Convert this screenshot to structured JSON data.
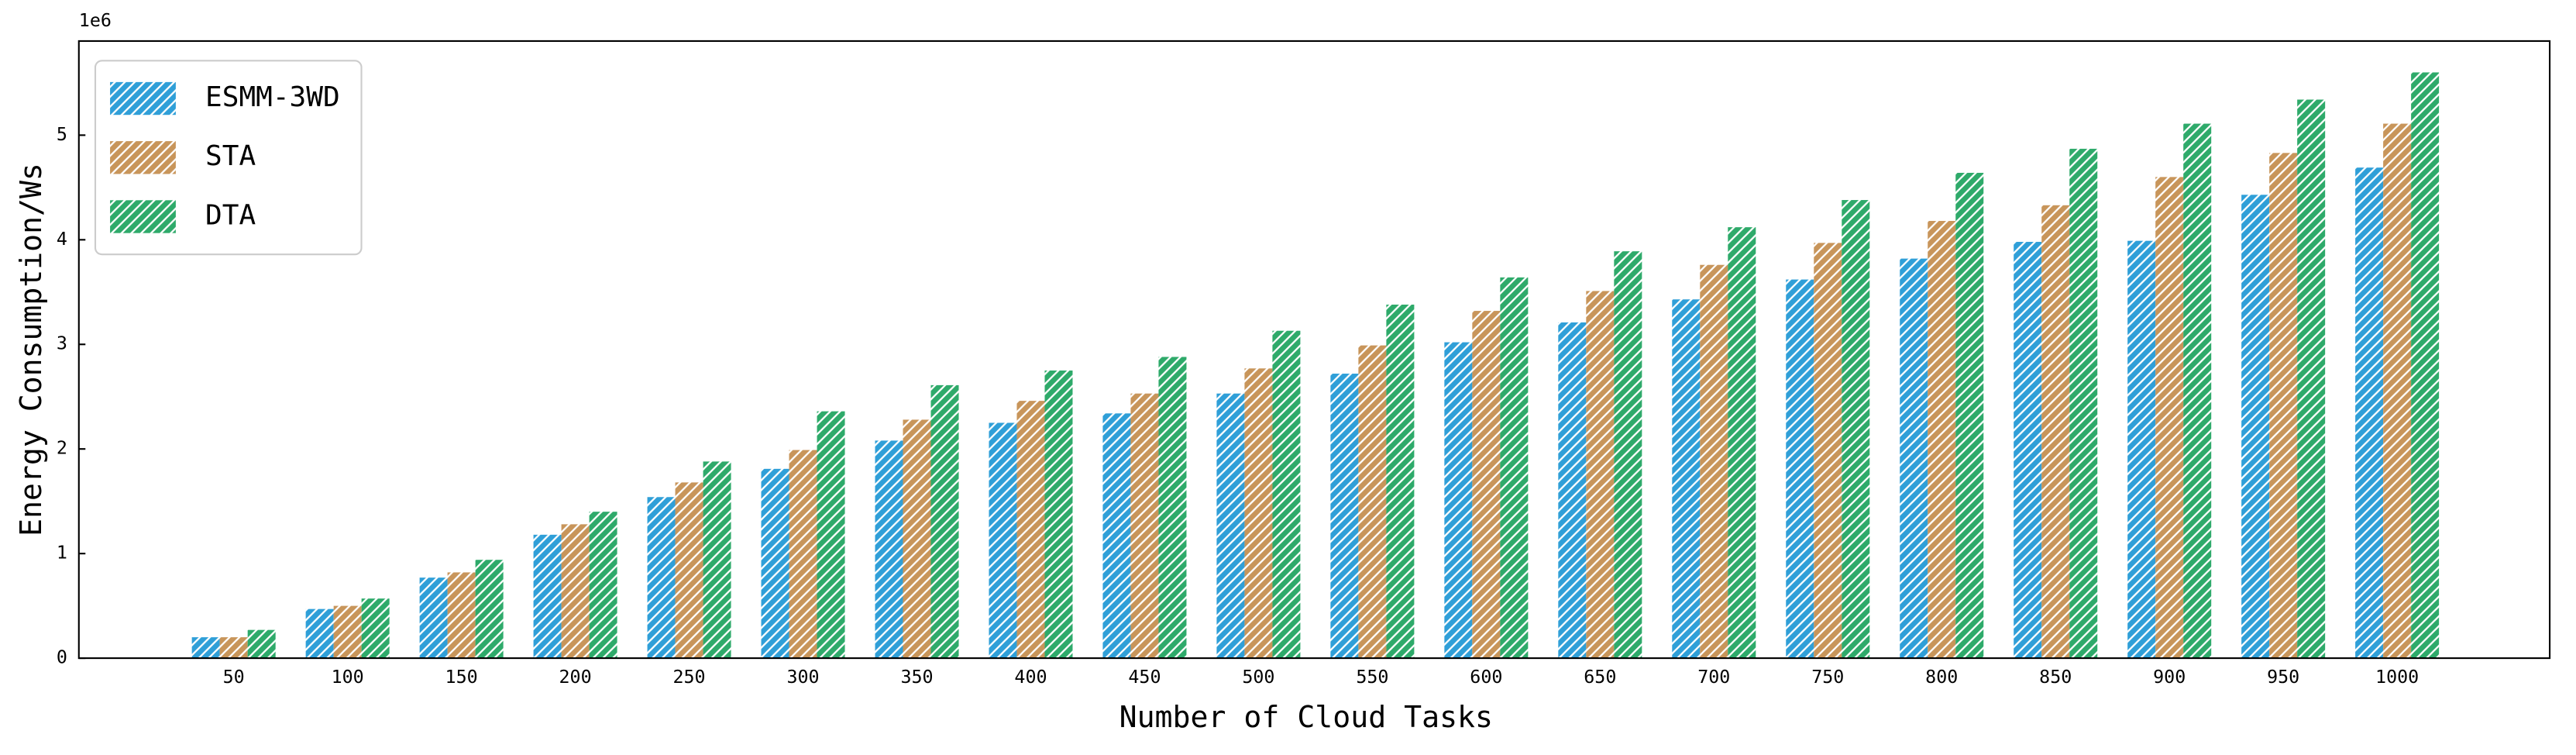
{
  "chart_data": {
    "type": "bar",
    "x_label": "Number of Cloud Tasks",
    "y_label": "Energy Consumption/Ws",
    "y_offset_label": "1e6",
    "categories": [
      "50",
      "100",
      "150",
      "200",
      "250",
      "300",
      "350",
      "400",
      "450",
      "500",
      "550",
      "600",
      "650",
      "700",
      "750",
      "800",
      "850",
      "900",
      "950",
      "1000"
    ],
    "series": [
      {
        "name": "ESMM-3WD",
        "color": "#2f9fd8",
        "values": [
          0.2,
          0.47,
          0.77,
          1.18,
          1.54,
          1.81,
          2.08,
          2.25,
          2.34,
          2.53,
          2.72,
          3.02,
          3.21,
          3.43,
          3.62,
          3.82,
          3.98,
          3.99,
          4.43,
          4.69
        ]
      },
      {
        "name": "STA",
        "color": "#c8955a",
        "values": [
          0.2,
          0.5,
          0.82,
          1.28,
          1.68,
          1.99,
          2.28,
          2.46,
          2.53,
          2.77,
          2.99,
          3.32,
          3.51,
          3.76,
          3.97,
          4.18,
          4.33,
          4.6,
          4.83,
          5.11
        ]
      },
      {
        "name": "DTA",
        "color": "#2eaa6a",
        "values": [
          0.27,
          0.57,
          0.94,
          1.4,
          1.88,
          2.36,
          2.61,
          2.75,
          2.88,
          3.13,
          3.38,
          3.64,
          3.89,
          4.12,
          4.38,
          4.64,
          4.87,
          5.11,
          5.34,
          5.6
        ]
      }
    ],
    "ylim": [
      0,
      5.9
    ],
    "yticks": [
      0,
      1,
      2,
      3,
      4,
      5
    ],
    "hatch": true,
    "legend": "upper-left"
  }
}
